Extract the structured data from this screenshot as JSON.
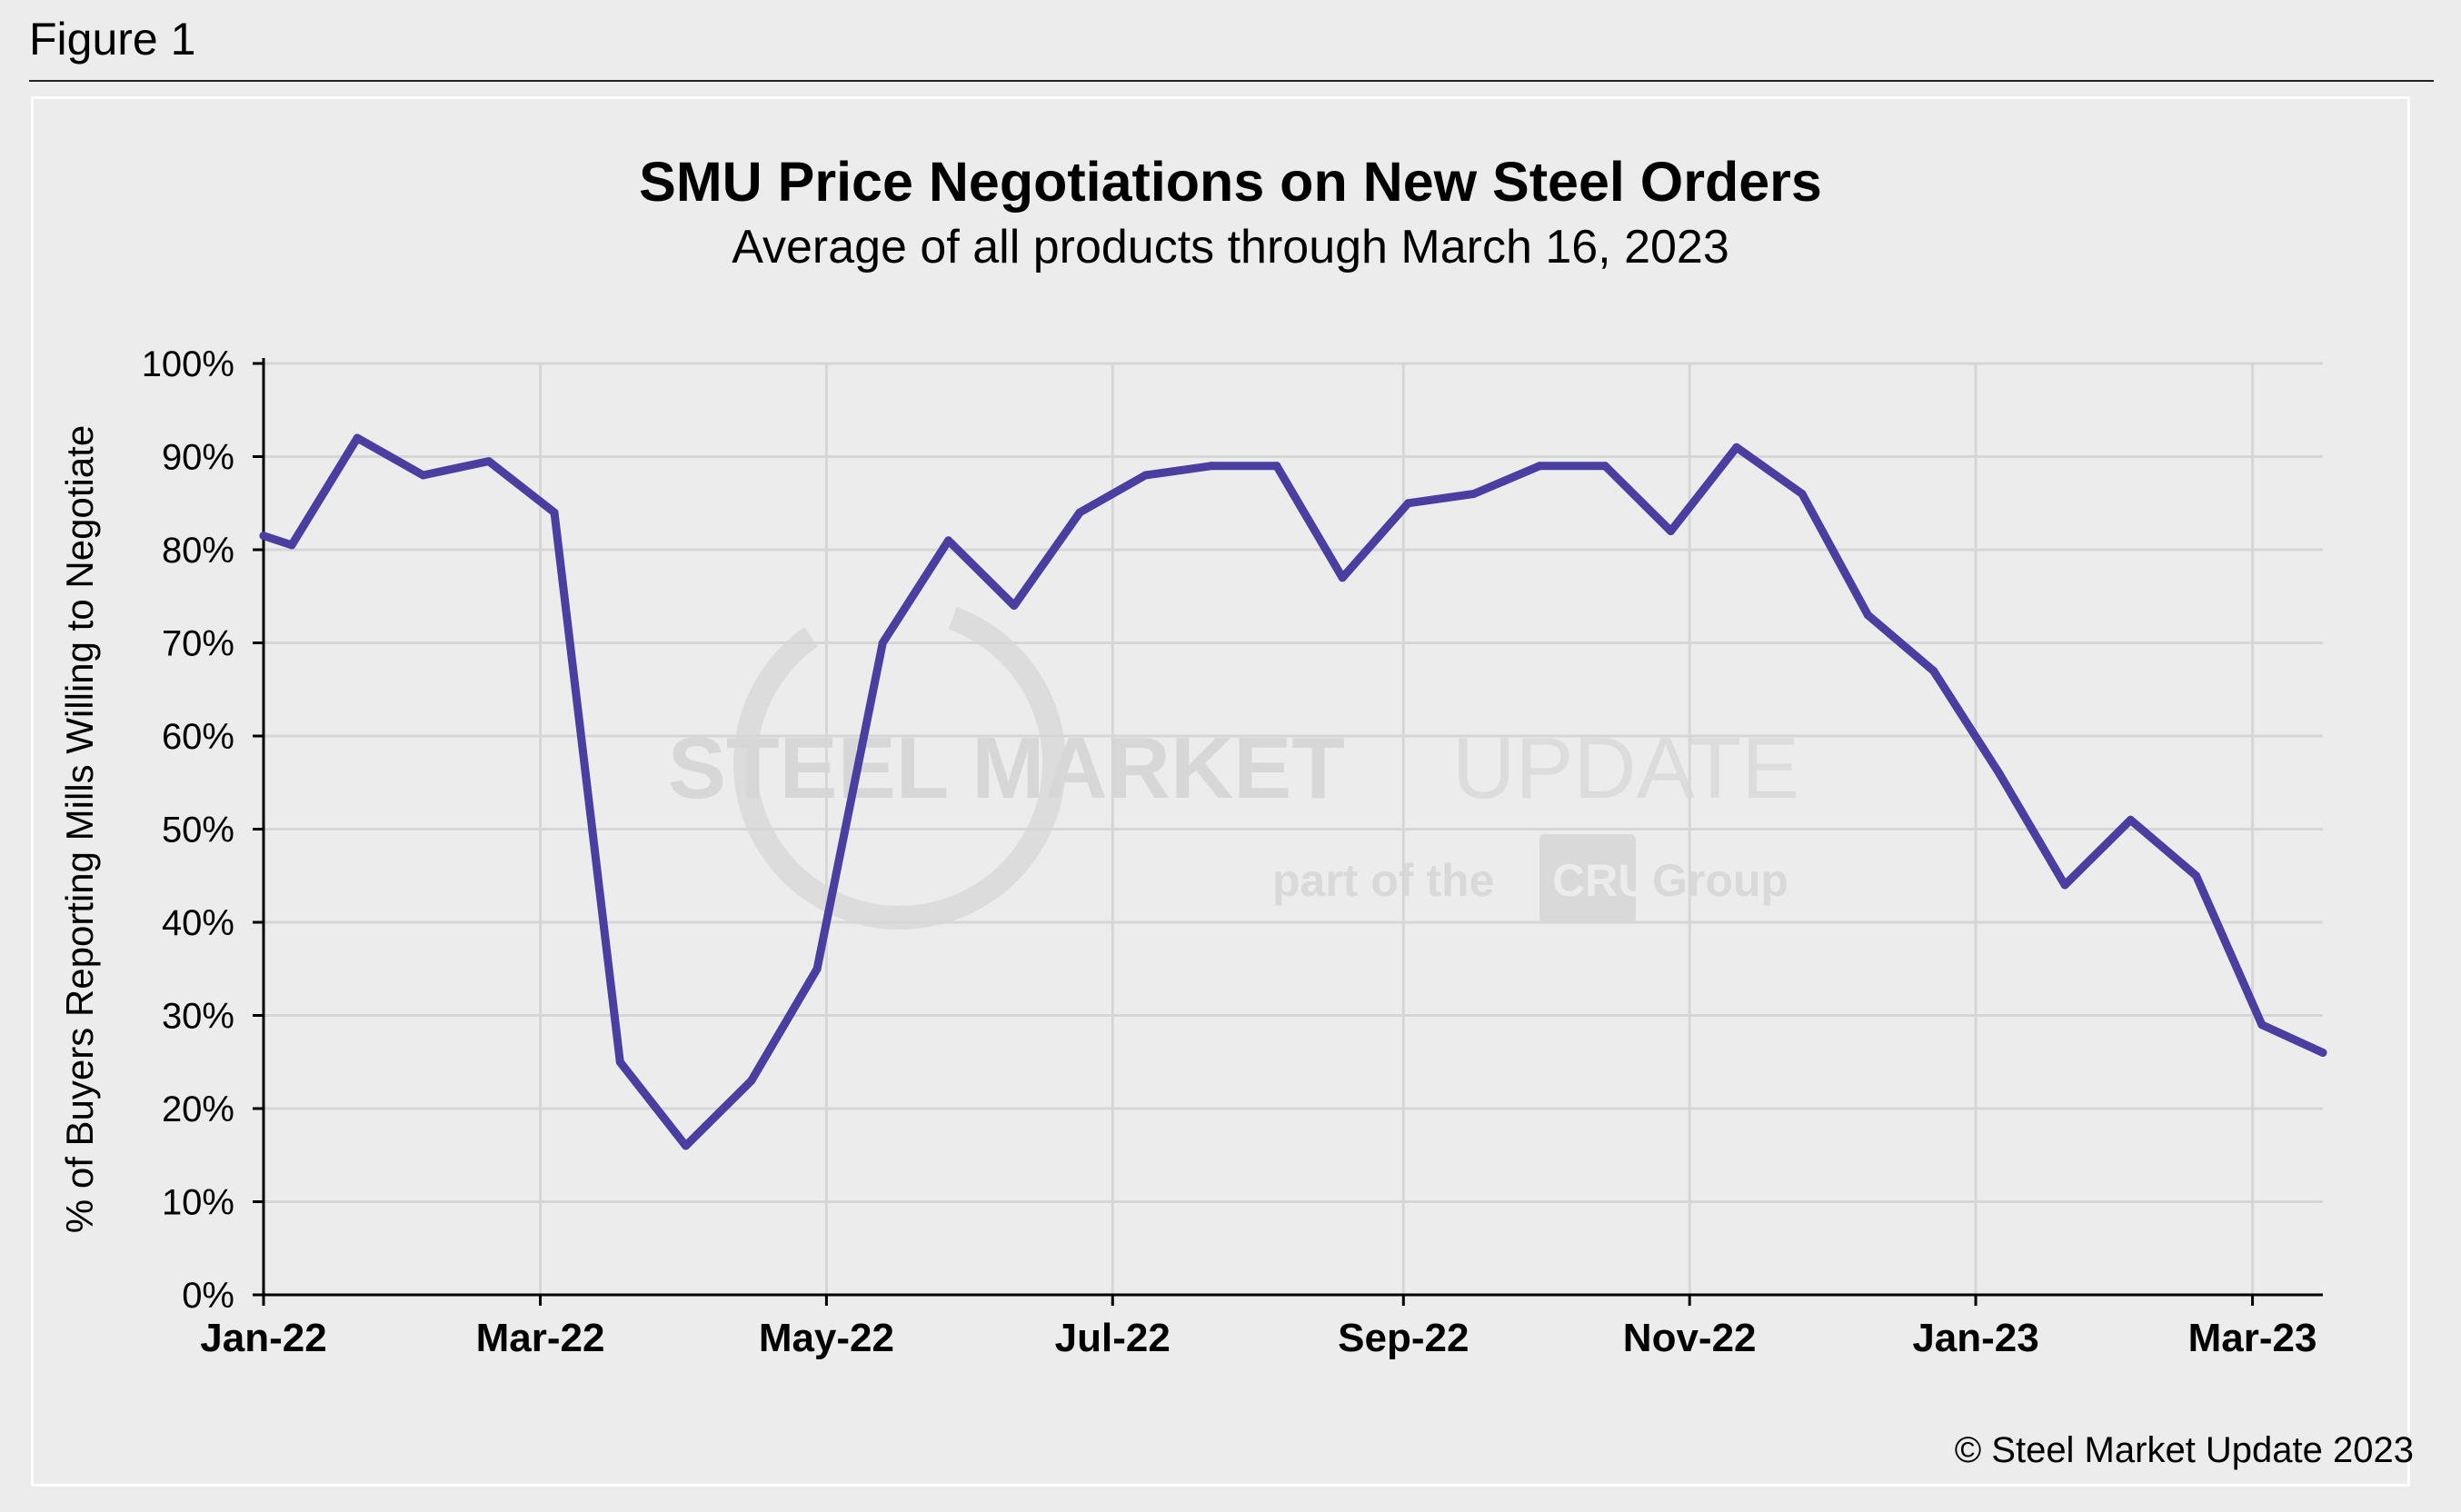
{
  "header": {
    "figure_label": "Figure 1"
  },
  "footer": {
    "copyright": "© Steel Market Update 2023"
  },
  "watermark": {
    "line1_bold": "STEEL MARKET",
    "line1_light": "UPDATE",
    "line2_pre": "part of the",
    "line2_brand": "CRU",
    "line2_post": "Group"
  },
  "colors": {
    "line": "#4a3ea0",
    "grid": "#d6d6d6",
    "background": "#ececec"
  },
  "chart_data": {
    "type": "line",
    "title": "SMU Price Negotiations on New Steel Orders",
    "subtitle": "Average of all products through March 16, 2023",
    "xlabel": "",
    "ylabel": "% of Buyers Reporting Mills Willing to Negotiate",
    "ylim": [
      0,
      100
    ],
    "y_ticks": [
      "0%",
      "10%",
      "20%",
      "30%",
      "40%",
      "50%",
      "60%",
      "70%",
      "80%",
      "90%",
      "100%"
    ],
    "x_ticks": [
      "Jan-22",
      "Mar-22",
      "May-22",
      "Jul-22",
      "Sep-22",
      "Nov-22",
      "Jan-23",
      "Mar-23"
    ],
    "grid": true,
    "series": [
      {
        "name": "Average of all products",
        "x": [
          "2022-01-01",
          "2022-01-07",
          "2022-01-21",
          "2022-02-04",
          "2022-02-18",
          "2022-03-04",
          "2022-03-18",
          "2022-04-01",
          "2022-04-15",
          "2022-04-29",
          "2022-05-13",
          "2022-05-27",
          "2022-06-10",
          "2022-06-24",
          "2022-07-08",
          "2022-07-22",
          "2022-08-05",
          "2022-08-19",
          "2022-09-02",
          "2022-09-16",
          "2022-09-30",
          "2022-10-14",
          "2022-10-28",
          "2022-11-11",
          "2022-11-25",
          "2022-12-09",
          "2022-12-23",
          "2023-01-06",
          "2023-01-20",
          "2023-02-03",
          "2023-02-17",
          "2023-03-03",
          "2023-03-16"
        ],
        "values": [
          81.5,
          80.5,
          92,
          88,
          89.5,
          84,
          25,
          16,
          23,
          35,
          70,
          81,
          74,
          84,
          88,
          89,
          89,
          77,
          85,
          86,
          89,
          89,
          82,
          91,
          86,
          73,
          67,
          56,
          44,
          51,
          45,
          29,
          26
        ]
      }
    ]
  }
}
